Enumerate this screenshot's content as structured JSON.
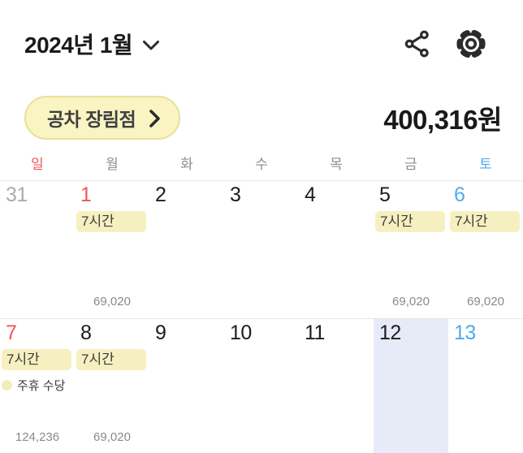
{
  "header": {
    "title": "2024년 1월"
  },
  "summary": {
    "store_button": "공차 장림점",
    "total_amount": "400,316원"
  },
  "weekdays": [
    {
      "label": "일",
      "type": "sunday"
    },
    {
      "label": "월",
      "type": "weekday"
    },
    {
      "label": "화",
      "type": "weekday"
    },
    {
      "label": "수",
      "type": "weekday"
    },
    {
      "label": "목",
      "type": "weekday"
    },
    {
      "label": "금",
      "type": "weekday"
    },
    {
      "label": "토",
      "type": "saturday"
    }
  ],
  "calendar": {
    "weeks": [
      {
        "days": [
          {
            "date": "31",
            "type": "muted"
          },
          {
            "date": "1",
            "type": "sunday",
            "badge": "7시간",
            "amount": "69,020"
          },
          {
            "date": "2",
            "type": "weekday"
          },
          {
            "date": "3",
            "type": "weekday"
          },
          {
            "date": "4",
            "type": "weekday"
          },
          {
            "date": "5",
            "type": "weekday",
            "badge": "7시간",
            "amount": "69,020"
          },
          {
            "date": "6",
            "type": "saturday",
            "badge": "7시간",
            "amount": "69,020"
          }
        ]
      },
      {
        "days": [
          {
            "date": "7",
            "type": "sunday",
            "badge": "7시간",
            "note": "주휴 수당",
            "amount": "124,236"
          },
          {
            "date": "8",
            "type": "weekday",
            "badge": "7시간",
            "amount": "69,020"
          },
          {
            "date": "9",
            "type": "weekday"
          },
          {
            "date": "10",
            "type": "weekday"
          },
          {
            "date": "11",
            "type": "weekday"
          },
          {
            "date": "12",
            "type": "weekday",
            "selected": true
          },
          {
            "date": "13",
            "type": "saturday"
          }
        ]
      }
    ]
  },
  "colors": {
    "sunday_text": "#f2555a",
    "saturday_text": "#4faaef",
    "muted_text": "#ababaf",
    "badge_bg": "#f6f0c1",
    "selected_cell_bg": "#e7ebf7",
    "pill_bg": "#faf4c2",
    "pill_border": "#e9e09c",
    "note_dot": "#f2ecbc"
  }
}
